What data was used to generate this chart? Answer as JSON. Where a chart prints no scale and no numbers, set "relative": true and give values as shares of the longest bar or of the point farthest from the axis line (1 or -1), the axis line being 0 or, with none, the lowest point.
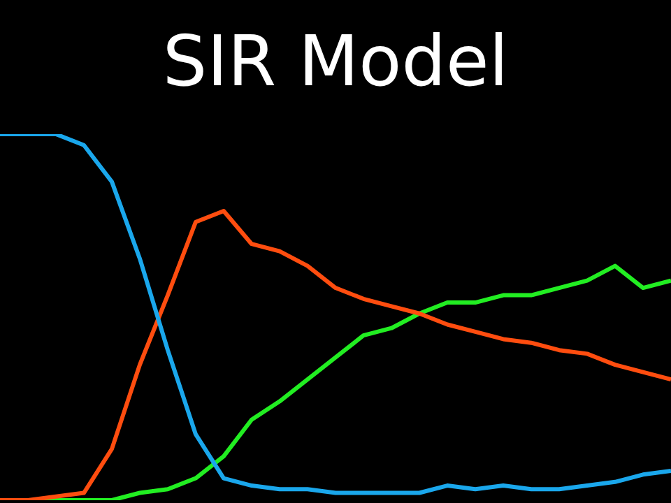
{
  "chart_data": {
    "type": "line",
    "title": "SIR Model",
    "relative": true,
    "legend": false,
    "marker": "none",
    "line_style": "solid",
    "categories": [
      null,
      null,
      null,
      null,
      null,
      null,
      null,
      null,
      null,
      null,
      null,
      null,
      null,
      null,
      null,
      null,
      null,
      null,
      null,
      null,
      null,
      null,
      null,
      null,
      null
    ],
    "series": [
      {
        "color": "#1aa7ec",
        "values": [
          1,
          1,
          1,
          0.97,
          0.87,
          0.66,
          0.41,
          0.18,
          0.06,
          0.04,
          0.03,
          0.03,
          0.02,
          0.02,
          0.02,
          0.02,
          0.04,
          0.03,
          0.04,
          0.03,
          0.03,
          0.04,
          0.05,
          0.07,
          0.08
        ]
      },
      {
        "color": "#ff4d0f",
        "values": [
          0,
          0,
          0.01,
          0.02,
          0.14,
          0.37,
          0.56,
          0.76,
          0.79,
          0.7,
          0.68,
          0.64,
          0.58,
          0.55,
          0.53,
          0.51,
          0.48,
          0.46,
          0.44,
          0.43,
          0.41,
          0.4,
          0.37,
          0.35,
          0.33
        ]
      },
      {
        "color": "#22ee22",
        "values": [
          0,
          0,
          0,
          0,
          0,
          0.02,
          0.03,
          0.06,
          0.12,
          0.22,
          0.27,
          0.33,
          0.39,
          0.45,
          0.47,
          0.51,
          0.54,
          0.54,
          0.56,
          0.56,
          0.58,
          0.6,
          0.64,
          0.58,
          0.6
        ]
      }
    ]
  }
}
